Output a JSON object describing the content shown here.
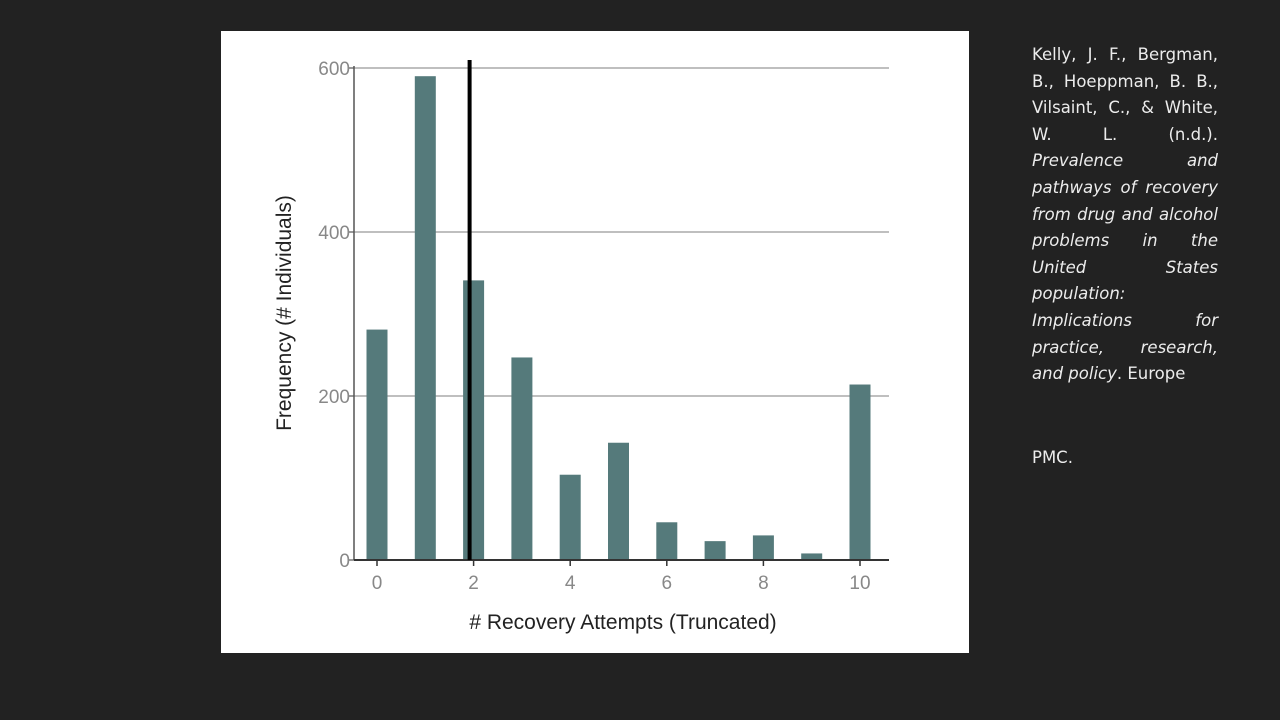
{
  "slide": {
    "background": "#222222",
    "citation": {
      "authors": "Kelly, J. F., Bergman, B., Hoeppman, B. B., Vilsaint, C., & White, W. L. (n.d.).",
      "title": "Prevalence and pathways of recovery from drug and alcohol problems in the United States population: Implications for practice, research, and policy",
      "suffix": ". Europe",
      "publisher": "PMC."
    }
  },
  "chart_data": {
    "type": "bar",
    "title": "",
    "xlabel": "# Recovery Attempts (Truncated)",
    "ylabel": "Frequency (# Individuals)",
    "categories": [
      0,
      1,
      2,
      3,
      4,
      5,
      6,
      7,
      8,
      9,
      10
    ],
    "values": [
      281,
      590,
      341,
      247,
      104,
      143,
      46,
      23,
      30,
      8,
      214
    ],
    "x_ticks": [
      0,
      2,
      4,
      6,
      8,
      10
    ],
    "y_ticks": [
      0,
      200,
      400,
      600
    ],
    "ylim": [
      0,
      600
    ],
    "grid": "horizontal",
    "bar_color": "#557a7b",
    "reference_line": {
      "x": 2,
      "color": "#000000",
      "label": ""
    }
  }
}
